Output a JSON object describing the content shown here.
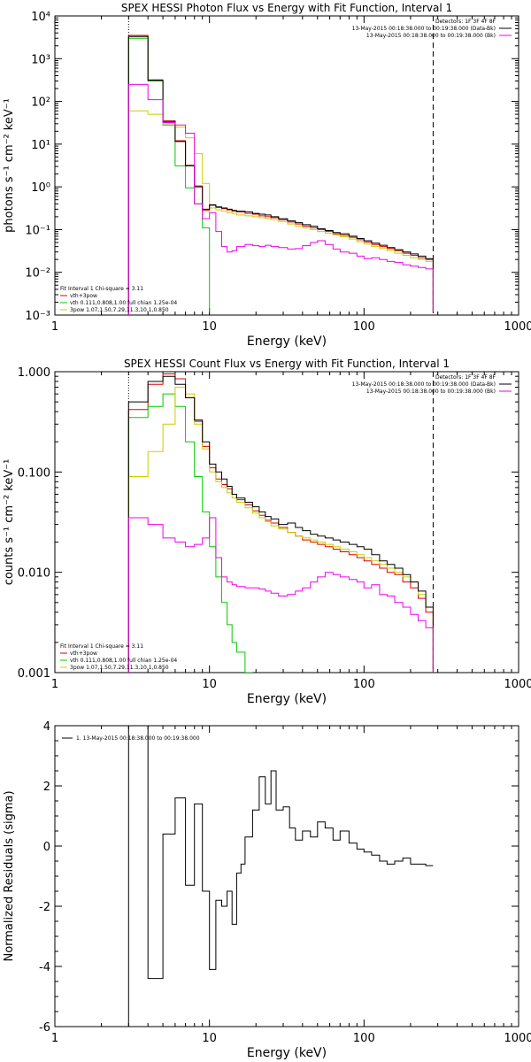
{
  "chart_data": [
    {
      "type": "line",
      "title": "SPEX HESSI Photon Flux vs Energy with Fit Function, Interval 1",
      "xlabel": "Energy (keV)",
      "ylabel": "photons s⁻¹ cm⁻² keV⁻¹",
      "xscale": "log",
      "yscale": "log",
      "xlim": [
        1,
        1000
      ],
      "ylim": [
        0.001,
        10000
      ],
      "xticks": [
        {
          "v": 1,
          "l": "1"
        },
        {
          "v": 10,
          "l": "10"
        },
        {
          "v": 100,
          "l": "100"
        },
        {
          "v": 1000,
          "l": "1000"
        }
      ],
      "yticks": [
        {
          "v": 0.001,
          "l": "10⁻³"
        },
        {
          "v": 0.01,
          "l": "10⁻²"
        },
        {
          "v": 0.1,
          "l": "10⁻¹"
        },
        {
          "v": 1,
          "l": "10⁰"
        },
        {
          "v": 10,
          "l": "10¹"
        },
        {
          "v": 100,
          "l": "10²"
        },
        {
          "v": 1000,
          "l": "10³"
        },
        {
          "v": 10000,
          "l": "10⁴"
        }
      ],
      "vlines": [
        {
          "x": 3,
          "style": "dotted"
        },
        {
          "x": 280,
          "style": "dashed"
        }
      ],
      "top_right": [
        "Detectors: 1F 3F 4F 8F",
        "13-May-2015 00:18:38.000 to 00:19:38.000 (Data-Bk)",
        "13-May-2015 00:18:38.000 to 00:19:38.000 (Bk)"
      ],
      "fit_info": "Fit Interval 1   Chi-square = 3.11",
      "series": [
        {
          "name": "vth+3pow",
          "color": "#dd0000",
          "x": [
            3,
            4,
            5,
            6,
            7,
            8,
            9,
            10,
            11,
            12,
            13,
            14,
            15,
            17,
            19,
            21,
            23,
            25,
            28,
            32,
            36,
            40,
            45,
            50,
            56,
            63,
            70,
            80,
            90,
            100,
            112,
            126,
            141,
            158,
            178,
            200,
            224,
            251,
            280
          ],
          "values": [
            3500,
            320,
            35,
            12,
            3.2,
            1.05,
            0.28,
            0.37,
            0.33,
            0.31,
            0.29,
            0.27,
            0.26,
            0.24,
            0.23,
            0.21,
            0.2,
            0.19,
            0.17,
            0.15,
            0.135,
            0.12,
            0.11,
            0.1,
            0.09,
            0.08,
            0.074,
            0.066,
            0.058,
            0.051,
            0.045,
            0.04,
            0.036,
            0.032,
            0.028,
            0.025,
            0.022,
            0.02,
            0.0012
          ]
        },
        {
          "name": "vth 0.111,0.808,1.00  full chian 1.25e-04",
          "color": "#00cc00",
          "x": [
            3,
            4,
            5,
            6,
            7,
            8,
            9,
            10
          ],
          "values": [
            3000,
            300,
            28,
            3.1,
            0.95,
            0.4,
            0.11,
            0.0012
          ]
        },
        {
          "name": "3pow 1.07,1.50,7.29,11.3,10.1,0.850",
          "color": "#cccc00",
          "x": [
            3,
            4,
            5,
            6,
            7,
            8,
            9,
            10,
            11,
            12,
            13,
            14,
            15,
            17,
            19,
            21,
            23,
            25,
            28,
            32,
            36,
            40,
            45,
            50,
            56,
            63,
            70,
            80,
            90,
            100,
            112,
            126,
            141,
            158,
            178,
            200,
            224,
            251,
            280
          ],
          "values": [
            60,
            50,
            30,
            25,
            14,
            6,
            1.2,
            0.32,
            0.29,
            0.27,
            0.25,
            0.24,
            0.22,
            0.21,
            0.2,
            0.19,
            0.18,
            0.17,
            0.155,
            0.135,
            0.12,
            0.11,
            0.1,
            0.09,
            0.082,
            0.075,
            0.068,
            0.06,
            0.052,
            0.046,
            0.04,
            0.036,
            0.032,
            0.028,
            0.025,
            0.022,
            0.02,
            0.018,
            0.0012
          ]
        },
        {
          "name": "Data-Bk",
          "color": "#000000",
          "x": [
            3,
            4,
            5,
            6,
            7,
            8,
            9,
            10,
            11,
            12,
            13,
            14,
            15,
            17,
            19,
            21,
            23,
            25,
            28,
            32,
            36,
            40,
            45,
            50,
            56,
            63,
            70,
            80,
            90,
            100,
            112,
            126,
            141,
            158,
            178,
            200,
            224,
            251,
            280
          ],
          "values": [
            3300,
            310,
            34,
            11.5,
            3.1,
            1.0,
            0.3,
            0.38,
            0.34,
            0.32,
            0.3,
            0.28,
            0.27,
            0.26,
            0.24,
            0.23,
            0.22,
            0.2,
            0.18,
            0.16,
            0.145,
            0.13,
            0.12,
            0.105,
            0.095,
            0.085,
            0.08,
            0.07,
            0.062,
            0.055,
            0.048,
            0.043,
            0.038,
            0.034,
            0.03,
            0.027,
            0.024,
            0.021,
            0.0012
          ]
        },
        {
          "name": "Bk",
          "color": "#ee00ee",
          "x": [
            3,
            4,
            5,
            6,
            7,
            8,
            9,
            10,
            11,
            12,
            13,
            14,
            15,
            17,
            19,
            21,
            23,
            25,
            28,
            32,
            36,
            40,
            45,
            50,
            56,
            63,
            70,
            80,
            90,
            100,
            112,
            126,
            141,
            158,
            178,
            200,
            224,
            251,
            280
          ],
          "values": [
            250,
            110,
            32,
            28,
            18,
            0.4,
            0.18,
            0.25,
            0.09,
            0.04,
            0.03,
            0.032,
            0.04,
            0.045,
            0.042,
            0.04,
            0.043,
            0.04,
            0.038,
            0.035,
            0.036,
            0.042,
            0.05,
            0.055,
            0.045,
            0.035,
            0.03,
            0.028,
            0.024,
            0.021,
            0.022,
            0.02,
            0.018,
            0.017,
            0.015,
            0.014,
            0.013,
            0.012,
            0.0012
          ]
        }
      ]
    },
    {
      "type": "line",
      "title": "SPEX HESSI Count Flux vs Energy with Fit Function, Interval 1",
      "xlabel": "Energy (keV)",
      "ylabel": "counts s⁻¹ cm⁻² keV⁻¹",
      "xscale": "log",
      "yscale": "log",
      "xlim": [
        1,
        1000
      ],
      "ylim": [
        0.001,
        1.0
      ],
      "xticks": [
        {
          "v": 1,
          "l": "1"
        },
        {
          "v": 10,
          "l": "10"
        },
        {
          "v": 100,
          "l": "100"
        },
        {
          "v": 1000,
          "l": "1000"
        }
      ],
      "yticks": [
        {
          "v": 0.001,
          "l": "0.001"
        },
        {
          "v": 0.01,
          "l": "0.010"
        },
        {
          "v": 0.1,
          "l": "0.100"
        },
        {
          "v": 1,
          "l": "1.000"
        }
      ],
      "vlines": [
        {
          "x": 3,
          "style": "dotted"
        },
        {
          "x": 280,
          "style": "dashed"
        }
      ],
      "top_right": [
        "Detectors: 1F 3F 4F 8F",
        "13-May-2015 00:18:38.000 to 00:19:38.000 (Data-Bk)",
        "13-May-2015 00:18:38.000 to 00:19:38.000 (Bk)"
      ],
      "fit_info": "Fit Interval 1   Chi-square = 3.11",
      "series": [
        {
          "name": "vth+3pow",
          "color": "#dd0000",
          "x": [
            3,
            4,
            5,
            6,
            7,
            8,
            9,
            10,
            11,
            12,
            13,
            14,
            15,
            17,
            19,
            21,
            23,
            25,
            28,
            32,
            36,
            40,
            45,
            50,
            56,
            63,
            70,
            80,
            90,
            100,
            112,
            126,
            141,
            158,
            178,
            200,
            224,
            251,
            280
          ],
          "values": [
            0.42,
            0.75,
            0.95,
            0.85,
            0.55,
            0.32,
            0.18,
            0.11,
            0.085,
            0.075,
            0.068,
            0.06,
            0.053,
            0.047,
            0.041,
            0.037,
            0.033,
            0.031,
            0.028,
            0.025,
            0.023,
            0.021,
            0.02,
            0.019,
            0.018,
            0.017,
            0.016,
            0.015,
            0.014,
            0.013,
            0.012,
            0.011,
            0.01,
            0.0095,
            0.008,
            0.007,
            0.0055,
            0.004,
            0.001
          ]
        },
        {
          "name": "vth 0.111,0.808,1.00  full chian 1.25e-04",
          "color": "#00cc00",
          "x": [
            3,
            4,
            5,
            6,
            7,
            8,
            9,
            10,
            11,
            12,
            13,
            14,
            15,
            17,
            19
          ],
          "values": [
            0.35,
            0.45,
            0.6,
            0.45,
            0.2,
            0.09,
            0.04,
            0.018,
            0.009,
            0.005,
            0.003,
            0.002,
            0.0016,
            0.001,
            0.001
          ]
        },
        {
          "name": "3pow 1.07,1.50,7.29,11.3,10.1,0.850",
          "color": "#cccc00",
          "x": [
            3,
            4,
            5,
            6,
            7,
            8,
            9,
            10,
            11,
            12,
            13,
            14,
            15,
            17,
            19,
            21,
            23,
            25,
            28,
            32,
            36,
            40,
            45,
            50,
            56,
            63,
            70,
            80,
            90,
            100,
            112,
            126,
            141,
            158,
            178,
            200,
            224,
            251,
            280
          ],
          "values": [
            0.09,
            0.16,
            0.3,
            0.7,
            0.6,
            0.3,
            0.17,
            0.1,
            0.08,
            0.07,
            0.062,
            0.055,
            0.05,
            0.044,
            0.039,
            0.035,
            0.032,
            0.029,
            0.027,
            0.025,
            0.023,
            0.022,
            0.021,
            0.02,
            0.019,
            0.018,
            0.017,
            0.016,
            0.015,
            0.014,
            0.013,
            0.012,
            0.011,
            0.01,
            0.009,
            0.008,
            0.006,
            0.0045,
            0.001
          ]
        },
        {
          "name": "Data-Bk",
          "color": "#000000",
          "x": [
            3,
            4,
            5,
            6,
            7,
            8,
            9,
            10,
            11,
            12,
            13,
            14,
            15,
            17,
            19,
            21,
            23,
            25,
            28,
            32,
            36,
            40,
            45,
            50,
            56,
            63,
            70,
            80,
            90,
            100,
            112,
            126,
            141,
            158,
            178,
            200,
            224,
            251,
            280
          ],
          "values": [
            0.5,
            0.8,
            0.9,
            0.75,
            0.55,
            0.33,
            0.2,
            0.12,
            0.1,
            0.085,
            0.072,
            0.06,
            0.055,
            0.05,
            0.045,
            0.04,
            0.036,
            0.034,
            0.03,
            0.031,
            0.028,
            0.026,
            0.024,
            0.023,
            0.022,
            0.021,
            0.02,
            0.019,
            0.018,
            0.017,
            0.015,
            0.013,
            0.012,
            0.011,
            0.0095,
            0.008,
            0.0065,
            0.0045,
            0.001
          ]
        },
        {
          "name": "Bk",
          "color": "#ee00ee",
          "x": [
            3,
            4,
            5,
            6,
            7,
            8,
            9,
            10,
            11,
            12,
            13,
            14,
            15,
            17,
            19,
            21,
            23,
            25,
            28,
            32,
            36,
            40,
            45,
            50,
            56,
            63,
            70,
            80,
            90,
            100,
            112,
            126,
            141,
            158,
            178,
            200,
            224,
            251,
            280
          ],
          "values": [
            0.035,
            0.03,
            0.022,
            0.02,
            0.018,
            0.019,
            0.022,
            0.035,
            0.014,
            0.009,
            0.008,
            0.0075,
            0.0072,
            0.007,
            0.007,
            0.0068,
            0.0065,
            0.0062,
            0.0058,
            0.006,
            0.0065,
            0.007,
            0.008,
            0.009,
            0.01,
            0.0095,
            0.009,
            0.0085,
            0.008,
            0.007,
            0.0075,
            0.006,
            0.0058,
            0.005,
            0.0045,
            0.0038,
            0.0033,
            0.0028,
            0.001
          ]
        }
      ]
    },
    {
      "type": "line",
      "title": "",
      "xlabel": "Energy (keV)",
      "ylabel": "Normalized Residuals (sigma)",
      "xscale": "log",
      "yscale": "linear",
      "xlim": [
        1,
        1000
      ],
      "ylim": [
        -6,
        4
      ],
      "xticks": [
        {
          "v": 1,
          "l": "1"
        },
        {
          "v": 10,
          "l": "10"
        },
        {
          "v": 100,
          "l": "100"
        },
        {
          "v": 1000,
          "l": "1000"
        }
      ],
      "yticks": [
        {
          "v": -6,
          "l": "-6"
        },
        {
          "v": -4,
          "l": "-4"
        },
        {
          "v": -2,
          "l": "-2"
        },
        {
          "v": 0,
          "l": "0"
        },
        {
          "v": 2,
          "l": "2"
        },
        {
          "v": 4,
          "l": "4"
        }
      ],
      "legend": "1. 13-May-2015 00:18:38.000 to 00:19:38.000",
      "series": [
        {
          "name": "1. 13-May-2015 00:18:38.000 to 00:19:38.000",
          "color": "#000000",
          "x": [
            3,
            4,
            5,
            6,
            7,
            8,
            9,
            10,
            11,
            12,
            13,
            14,
            15,
            16,
            17,
            19,
            21,
            23,
            25,
            27,
            30,
            33,
            36,
            40,
            45,
            50,
            56,
            63,
            70,
            80,
            90,
            100,
            112,
            126,
            141,
            158,
            178,
            200,
            224,
            251,
            280
          ],
          "values": [
            4,
            -4.4,
            0.4,
            1.6,
            -1.3,
            1.4,
            -1.5,
            -4.1,
            -1.8,
            -2.0,
            -1.5,
            -2.6,
            -0.9,
            -0.6,
            0.3,
            1.2,
            2.3,
            1.4,
            2.5,
            1.2,
            1.3,
            0.6,
            0.2,
            0.5,
            0.3,
            0.8,
            0.6,
            0.2,
            0.5,
            0.1,
            -0.1,
            -0.2,
            -0.3,
            -0.5,
            -0.6,
            -0.5,
            -0.4,
            -0.6,
            -0.6,
            -0.65,
            -0.65
          ]
        }
      ]
    }
  ]
}
